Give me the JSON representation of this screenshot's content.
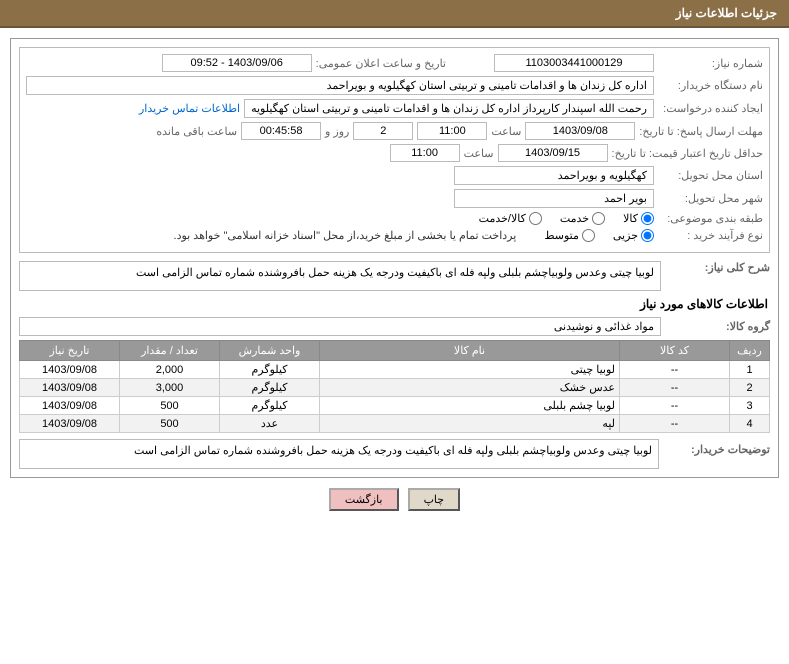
{
  "header": {
    "title": "جزئیات اطلاعات نیاز"
  },
  "fields": {
    "need_no_label": "شماره نیاز:",
    "need_no": "1103003441000129",
    "announce_label": "تاریخ و ساعت اعلان عمومی:",
    "announce_val": "1403/09/06 - 09:52",
    "buyer_org_label": "نام دستگاه خریدار:",
    "buyer_org": "اداره کل زندان ها و اقدامات تامینی و تربیتی استان کهگیلویه و بویراحمد",
    "requester_label": "ایجاد کننده درخواست:",
    "requester": "رحمت الله اسپندار کارپرداز اداره کل زندان ها و اقدامات تامینی و تربیتی استان کهگیلویه",
    "contact_link": "اطلاعات تماس خریدار",
    "deadline_label": "مهلت ارسال پاسخ: تا تاریخ:",
    "deadline_date": "1403/09/08",
    "time_label": "ساعت",
    "deadline_time": "11:00",
    "days_remain": "2",
    "days_and": "روز و",
    "time_remain": "00:45:58",
    "remain_suffix": "ساعت باقی مانده",
    "validity_label": "حداقل تاریخ اعتبار قیمت: تا تاریخ:",
    "validity_date": "1403/09/15",
    "validity_time": "11:00",
    "province_label": "استان محل تحویل:",
    "province": "کهگیلویه و بویراحمد",
    "city_label": "شهر محل تحویل:",
    "city": "بویر احمد",
    "category_label": "طبقه بندی موضوعی:",
    "cat_goods": "کالا",
    "cat_service": "خدمت",
    "cat_both": "کالا/خدمت",
    "process_label": "نوع فرآیند خرید :",
    "opt_minor": "جزیی",
    "opt_medium": "متوسط",
    "payment_note": "پرداخت تمام یا بخشی از مبلغ خرید،از محل \"اسناد خزانه اسلامی\" خواهد بود.",
    "general_desc_label": "شرح کلی نیاز:",
    "general_desc": "لوبیا چیتی وعدس ولوبیاچشم بلبلی ولپه فله  ای باکیفیت ودرجه یک هزینه حمل بافروشنده شماره تماس الزامی است",
    "goods_info_title": "اطلاعات کالاهای مورد نیاز",
    "goods_group_label": "گروه کالا:",
    "goods_group": "مواد غذائی و نوشیدنی",
    "buyer_notes_label": "توضیحات خریدار:",
    "buyer_notes": "لوبیا چیتی وعدس ولوبیاچشم بلبلی ولپه فله  ای باکیفیت ودرجه یک هزینه حمل بافروشنده شماره تماس الزامی است"
  },
  "table": {
    "headers": {
      "row": "ردیف",
      "code": "کد کالا",
      "name": "نام کالا",
      "unit": "واحد شمارش",
      "qty": "تعداد / مقدار",
      "date": "تاریخ نیاز"
    },
    "rows": [
      {
        "row": "1",
        "code": "--",
        "name": "لوبیا چیتی",
        "unit": "کیلوگرم",
        "qty": "2,000",
        "date": "1403/09/08"
      },
      {
        "row": "2",
        "code": "--",
        "name": "عدس خشک",
        "unit": "کیلوگرم",
        "qty": "3,000",
        "date": "1403/09/08"
      },
      {
        "row": "3",
        "code": "--",
        "name": "لوبیا چشم بلبلی",
        "unit": "کیلوگرم",
        "qty": "500",
        "date": "1403/09/08"
      },
      {
        "row": "4",
        "code": "--",
        "name": "لپه",
        "unit": "عدد",
        "qty": "500",
        "date": "1403/09/08"
      }
    ]
  },
  "buttons": {
    "print": "چاپ",
    "back": "بازگشت"
  },
  "colors": {
    "header_bg": "#8b6f47",
    "grid_header_bg": "#999999",
    "link": "#0066cc"
  }
}
